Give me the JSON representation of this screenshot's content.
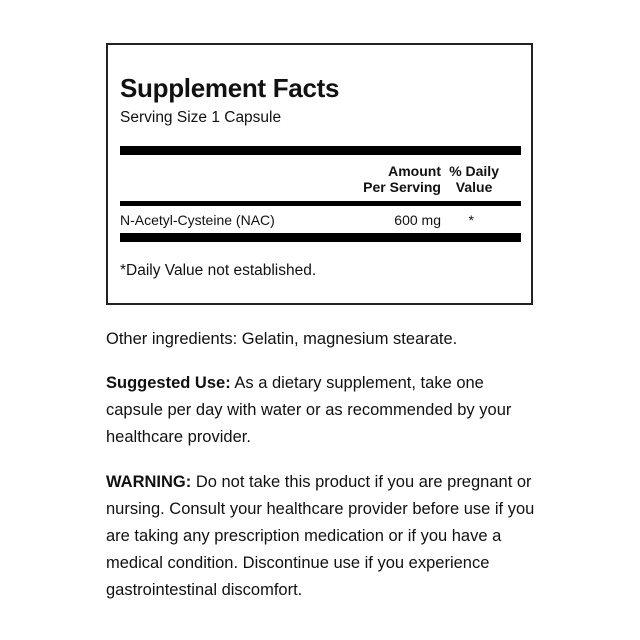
{
  "facts": {
    "title": "Supplement Facts",
    "serving_size": "Serving Size 1 Capsule",
    "header_amount_line1": "Amount",
    "header_amount_line2": "Per Serving",
    "header_dv_line1": "% Daily",
    "header_dv_line2": "Value",
    "rows": [
      {
        "ingredient": "N-Acetyl-Cysteine (NAC)",
        "amount": "600 mg",
        "daily_value": "*"
      }
    ],
    "footnote": "*Daily Value not established."
  },
  "other_ingredients": "Other ingredients: Gelatin, magnesium stearate.",
  "suggested_use": {
    "label": "Suggested Use:",
    "text": " As a dietary supplement, take one capsule per day with water or as recommended by your healthcare provider."
  },
  "warning": {
    "label": "WARNING:",
    "text": " Do not take this product if you are pregnant or nursing. Consult your healthcare provider before use if you are taking any prescription medication or if you have a medical condition. Discontinue use if you experience gastrointestinal discomfort."
  }
}
